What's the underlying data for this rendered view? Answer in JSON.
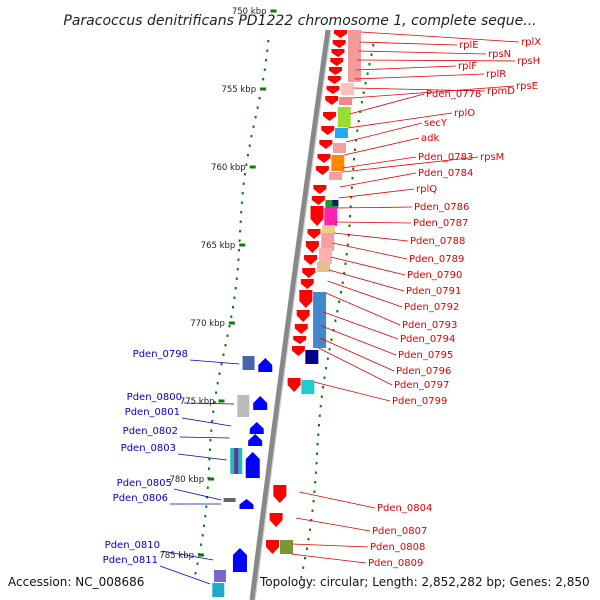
{
  "title": "Paracoccus denitrificans PD1222 chromosome 1, complete seque...",
  "footer": {
    "accession": "Accession: NC_008686",
    "topology": "Topology: circular; Length: 2,852,282 bp; Genes: 2,850"
  },
  "scale": {
    "ticks": [
      "750 kbp",
      "755 kbp",
      "760 kbp",
      "765 kbp",
      "770 kbp",
      "775 kbp",
      "780 kbp",
      "785 kbp"
    ]
  },
  "colors": {
    "forward_strand": "#ff0000",
    "reverse_strand": "#0000ff",
    "forward_label": "#e00000",
    "reverse_label": "#0000cc",
    "backbone": "#888888",
    "gc_dots": "#0a7a0a"
  },
  "forward_genes": [
    {
      "name": "rplX"
    },
    {
      "name": "rplE"
    },
    {
      "name": "rpsN"
    },
    {
      "name": "rpsH"
    },
    {
      "name": "rplF"
    },
    {
      "name": "rplR"
    },
    {
      "name": "rpmD"
    },
    {
      "name": "rpsE"
    },
    {
      "name": "Pden_0778"
    },
    {
      "name": "rplO"
    },
    {
      "name": "secY"
    },
    {
      "name": "adk"
    },
    {
      "name": "Pden_0783"
    },
    {
      "name": "rpsM"
    },
    {
      "name": "Pden_0784"
    },
    {
      "name": "rplQ"
    },
    {
      "name": "Pden_0786"
    },
    {
      "name": "Pden_0787"
    },
    {
      "name": "Pden_0788"
    },
    {
      "name": "Pden_0789"
    },
    {
      "name": "Pden_0790"
    },
    {
      "name": "Pden_0791"
    },
    {
      "name": "Pden_0792"
    },
    {
      "name": "Pden_0793"
    },
    {
      "name": "Pden_0794"
    },
    {
      "name": "Pden_0795"
    },
    {
      "name": "Pden_0796"
    },
    {
      "name": "Pden_0797"
    },
    {
      "name": "Pden_0799"
    },
    {
      "name": "Pden_0804"
    },
    {
      "name": "Pden_0807"
    },
    {
      "name": "Pden_0808"
    },
    {
      "name": "Pden_0809"
    }
  ],
  "reverse_genes": [
    {
      "name": "Pden_0798"
    },
    {
      "name": "Pden_0800"
    },
    {
      "name": "Pden_0801"
    },
    {
      "name": "Pden_0802"
    },
    {
      "name": "Pden_0803"
    },
    {
      "name": "Pden_0805"
    },
    {
      "name": "Pden_0806"
    },
    {
      "name": "Pden_0810"
    },
    {
      "name": "Pden_0811"
    }
  ]
}
